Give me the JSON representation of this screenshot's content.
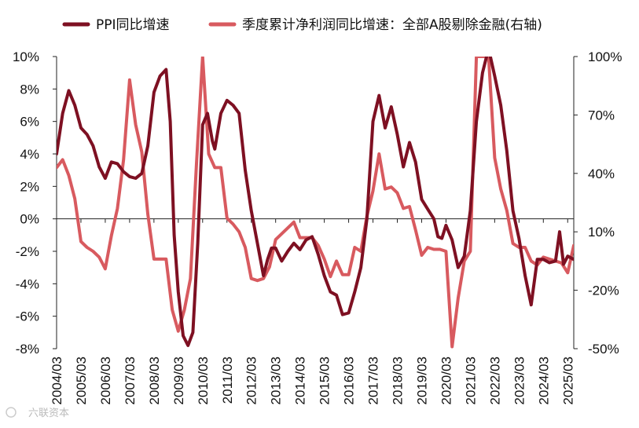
{
  "chart_data": {
    "type": "line",
    "title": "",
    "legend_placement": "top",
    "grid": false,
    "x_tick_labels": [
      "2004/03",
      "2005/03",
      "2006/03",
      "2007/03",
      "2008/03",
      "2009/03",
      "2010/03",
      "2011/03",
      "2012/03",
      "2013/03",
      "2014/03",
      "2015/03",
      "2016/03",
      "2017/03",
      "2018/03",
      "2019/03",
      "2020/03",
      "2021/03",
      "2022/03",
      "2023/03",
      "2024/03",
      "2025/03"
    ],
    "x_range": [
      2004.0,
      2025.25
    ],
    "y_left": {
      "range": [
        -8,
        10
      ],
      "ticks": [
        "10%",
        "8%",
        "6%",
        "4%",
        "2%",
        "0%",
        "-2%",
        "-4%",
        "-6%",
        "-8%"
      ]
    },
    "y_right": {
      "range": [
        -50,
        100
      ],
      "ticks": [
        "100%",
        "70%",
        "40%",
        "10%",
        "-20%",
        "-50%"
      ]
    },
    "series": [
      {
        "name": "PPI同比增速",
        "axis": "left",
        "color": "#7e1022",
        "points": [
          [
            2004.0,
            4.0
          ],
          [
            2004.25,
            6.5
          ],
          [
            2004.5,
            7.9
          ],
          [
            2004.75,
            7.0
          ],
          [
            2005.0,
            5.6
          ],
          [
            2005.25,
            5.2
          ],
          [
            2005.5,
            4.5
          ],
          [
            2005.75,
            3.2
          ],
          [
            2006.0,
            2.5
          ],
          [
            2006.25,
            3.5
          ],
          [
            2006.5,
            3.4
          ],
          [
            2006.75,
            2.9
          ],
          [
            2007.0,
            2.6
          ],
          [
            2007.25,
            2.5
          ],
          [
            2007.5,
            2.8
          ],
          [
            2007.75,
            4.5
          ],
          [
            2008.0,
            7.8
          ],
          [
            2008.25,
            8.8
          ],
          [
            2008.5,
            9.2
          ],
          [
            2008.67,
            6.0
          ],
          [
            2008.83,
            -1.0
          ],
          [
            2009.0,
            -4.5
          ],
          [
            2009.2,
            -7.2
          ],
          [
            2009.4,
            -7.8
          ],
          [
            2009.6,
            -7.0
          ],
          [
            2009.8,
            -1.5
          ],
          [
            2010.0,
            5.8
          ],
          [
            2010.2,
            6.5
          ],
          [
            2010.4,
            4.8
          ],
          [
            2010.5,
            4.3
          ],
          [
            2010.75,
            6.5
          ],
          [
            2011.0,
            7.3
          ],
          [
            2011.25,
            7.0
          ],
          [
            2011.5,
            6.5
          ],
          [
            2011.75,
            3.0
          ],
          [
            2012.0,
            0.5
          ],
          [
            2012.25,
            -1.5
          ],
          [
            2012.5,
            -3.5
          ],
          [
            2012.67,
            -2.5
          ],
          [
            2012.83,
            -1.8
          ],
          [
            2013.0,
            -1.8
          ],
          [
            2013.25,
            -2.6
          ],
          [
            2013.5,
            -2.0
          ],
          [
            2013.75,
            -1.5
          ],
          [
            2014.0,
            -1.9
          ],
          [
            2014.25,
            -1.3
          ],
          [
            2014.5,
            -1.1
          ],
          [
            2014.75,
            -2.2
          ],
          [
            2015.0,
            -3.5
          ],
          [
            2015.25,
            -4.5
          ],
          [
            2015.5,
            -4.7
          ],
          [
            2015.75,
            -5.9
          ],
          [
            2016.0,
            -5.8
          ],
          [
            2016.25,
            -4.5
          ],
          [
            2016.5,
            -3.0
          ],
          [
            2016.75,
            0.0
          ],
          [
            2017.0,
            6.0
          ],
          [
            2017.25,
            7.6
          ],
          [
            2017.5,
            5.6
          ],
          [
            2017.75,
            6.9
          ],
          [
            2018.0,
            5.2
          ],
          [
            2018.25,
            3.2
          ],
          [
            2018.5,
            4.7
          ],
          [
            2018.75,
            3.5
          ],
          [
            2019.0,
            1.2
          ],
          [
            2019.25,
            0.6
          ],
          [
            2019.5,
            0.0
          ],
          [
            2019.67,
            -1.1
          ],
          [
            2019.83,
            -1.2
          ],
          [
            2020.0,
            -0.4
          ],
          [
            2020.25,
            -1.3
          ],
          [
            2020.5,
            -3.0
          ],
          [
            2020.75,
            -2.3
          ],
          [
            2021.0,
            0.5
          ],
          [
            2021.25,
            6.0
          ],
          [
            2021.5,
            9.0
          ],
          [
            2021.75,
            10.5
          ],
          [
            2022.0,
            8.8
          ],
          [
            2022.25,
            7.0
          ],
          [
            2022.5,
            4.2
          ],
          [
            2022.75,
            0.5
          ],
          [
            2023.0,
            -1.2
          ],
          [
            2023.25,
            -3.5
          ],
          [
            2023.5,
            -5.3
          ],
          [
            2023.75,
            -2.5
          ],
          [
            2024.0,
            -2.5
          ],
          [
            2024.25,
            -2.7
          ],
          [
            2024.5,
            -2.6
          ],
          [
            2024.67,
            -0.8
          ],
          [
            2024.83,
            -2.8
          ],
          [
            2025.0,
            -2.3
          ],
          [
            2025.25,
            -2.5
          ]
        ]
      },
      {
        "name": "季度累计净利润同比增速：全部A股剔除金融(右轴)",
        "axis": "right",
        "color": "#d85a5f",
        "points": [
          [
            2004.0,
            43
          ],
          [
            2004.25,
            47
          ],
          [
            2004.5,
            39
          ],
          [
            2004.75,
            27
          ],
          [
            2005.0,
            5
          ],
          [
            2005.25,
            2
          ],
          [
            2005.5,
            0
          ],
          [
            2005.75,
            -3
          ],
          [
            2006.0,
            -9
          ],
          [
            2006.25,
            8
          ],
          [
            2006.5,
            22
          ],
          [
            2006.75,
            47
          ],
          [
            2007.0,
            88
          ],
          [
            2007.25,
            65
          ],
          [
            2007.5,
            51
          ],
          [
            2007.75,
            19
          ],
          [
            2008.0,
            -4
          ],
          [
            2008.25,
            -4
          ],
          [
            2008.5,
            -4
          ],
          [
            2008.75,
            -30
          ],
          [
            2009.0,
            -41
          ],
          [
            2009.25,
            -30
          ],
          [
            2009.5,
            -14
          ],
          [
            2009.75,
            45
          ],
          [
            2010.0,
            100
          ],
          [
            2010.25,
            50
          ],
          [
            2010.5,
            43
          ],
          [
            2010.75,
            43
          ],
          [
            2011.0,
            17
          ],
          [
            2011.25,
            14
          ],
          [
            2011.5,
            10
          ],
          [
            2011.75,
            2
          ],
          [
            2012.0,
            -14
          ],
          [
            2012.25,
            -15
          ],
          [
            2012.5,
            -14
          ],
          [
            2012.75,
            -8
          ],
          [
            2013.0,
            6
          ],
          [
            2013.25,
            9
          ],
          [
            2013.5,
            12
          ],
          [
            2013.75,
            15
          ],
          [
            2014.0,
            7
          ],
          [
            2014.25,
            7
          ],
          [
            2014.5,
            7
          ],
          [
            2014.75,
            3
          ],
          [
            2015.0,
            -4
          ],
          [
            2015.25,
            -13
          ],
          [
            2015.5,
            -5
          ],
          [
            2015.75,
            -12
          ],
          [
            2016.0,
            -12
          ],
          [
            2016.25,
            2
          ],
          [
            2016.5,
            0
          ],
          [
            2016.75,
            18
          ],
          [
            2017.0,
            31
          ],
          [
            2017.25,
            50
          ],
          [
            2017.5,
            32
          ],
          [
            2017.75,
            33
          ],
          [
            2018.0,
            30
          ],
          [
            2018.25,
            22
          ],
          [
            2018.5,
            23
          ],
          [
            2018.75,
            11
          ],
          [
            2019.0,
            -2
          ],
          [
            2019.25,
            2
          ],
          [
            2019.5,
            1
          ],
          [
            2019.75,
            1
          ],
          [
            2020.0,
            0
          ],
          [
            2020.25,
            -49
          ],
          [
            2020.5,
            -24
          ],
          [
            2020.75,
            -5
          ],
          [
            2021.0,
            0
          ],
          [
            2021.25,
            100
          ],
          [
            2021.5,
            100
          ],
          [
            2021.75,
            100
          ],
          [
            2022.0,
            48
          ],
          [
            2022.25,
            32
          ],
          [
            2022.5,
            21
          ],
          [
            2022.75,
            4
          ],
          [
            2023.0,
            2
          ],
          [
            2023.25,
            2
          ],
          [
            2023.5,
            -5
          ],
          [
            2023.75,
            -7
          ],
          [
            2024.0,
            -3
          ],
          [
            2024.25,
            -4
          ],
          [
            2024.5,
            -5
          ],
          [
            2024.75,
            -6
          ],
          [
            2025.0,
            -11
          ],
          [
            2025.25,
            3
          ]
        ]
      }
    ]
  },
  "watermark": "六联资本"
}
